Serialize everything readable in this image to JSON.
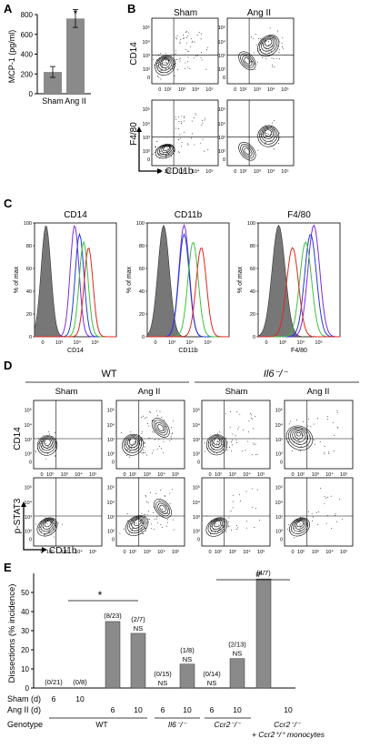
{
  "panel_labels": {
    "a": "A",
    "b": "B",
    "c": "C",
    "d": "D",
    "e": "E"
  },
  "colors": {
    "bar": "#8a8a8a",
    "isotype": "#777777",
    "purple": "#7a2be2",
    "blue": "#1f3cd6",
    "green": "#3cc23c",
    "red": "#e2261e"
  },
  "chart_data": [
    {
      "panel": "A",
      "type": "bar",
      "ylabel": "MCP-1 (pg/ml)",
      "categories": [
        "Sham",
        "Ang II"
      ],
      "values": [
        220,
        760
      ],
      "errors": [
        55,
        90
      ],
      "significance": [
        "",
        "*"
      ],
      "ylim": [
        0,
        800
      ],
      "yticks": [
        "0",
        "200",
        "400",
        "600",
        "800"
      ]
    },
    {
      "panel": "B",
      "type": "scatter",
      "columns": [
        "Sham",
        "Ang II"
      ],
      "row_ylabels": [
        "CD14",
        "F4/80"
      ],
      "xlabel": "CD11b",
      "tick_labels": [
        "0",
        "10²",
        "10³",
        "10⁴",
        "10⁵"
      ]
    },
    {
      "panel": "C",
      "type": "line",
      "titles": [
        "CD14",
        "CD11b",
        "F4/80"
      ],
      "xlabels": [
        "CD14",
        "CD11b",
        "F4/80"
      ],
      "ylabel": "% of max",
      "yticks": [
        "0",
        "20",
        "40",
        "60",
        "80",
        "100"
      ],
      "xticks": [
        "0",
        "10³",
        "10⁴",
        "10⁵"
      ]
    },
    {
      "panel": "D",
      "type": "scatter",
      "groups": [
        "WT",
        "Il6⁻/⁻"
      ],
      "columns": [
        "Sham",
        "Ang II",
        "Sham",
        "Ang II"
      ],
      "row_ylabels": [
        "CD14",
        "p-STAT3"
      ],
      "xlabel": "CD11b",
      "tick_labels": [
        "0",
        "10²",
        "10³",
        "10⁴",
        "10⁵"
      ]
    },
    {
      "panel": "E",
      "type": "bar",
      "ylabel": "Dissections (% incidence)",
      "ylim": [
        0,
        60
      ],
      "yticks": [
        "0",
        "10",
        "20",
        "30",
        "40",
        "50"
      ],
      "row_labels": [
        "Sham (d)",
        "Ang II (d)",
        "Genotype"
      ],
      "values": [
        0,
        0,
        34.8,
        28.6,
        0,
        12.5,
        0,
        15.4,
        57.1
      ],
      "counts": [
        "(0/21)",
        "(0/8)",
        "(8/23)",
        "(2/7)",
        "(0/15)",
        "(1/8)",
        "(0/14)",
        "(2/13)",
        "(4/7)"
      ],
      "ns": [
        "",
        "",
        "",
        "NS",
        "NS",
        "NS",
        "NS",
        "NS",
        ""
      ],
      "sham_days": [
        "6",
        "10",
        "",
        "",
        "",
        "",
        "",
        "",
        ""
      ],
      "angii_days": [
        "",
        "",
        "6",
        "10",
        "6",
        "10",
        "6",
        "10",
        "10"
      ],
      "genotypes": [
        "WT",
        "Il6⁻/⁻",
        "Ccr2⁻/⁻",
        "Ccr2⁻/⁻\n+ Ccr2⁺/⁺ monocytes"
      ],
      "significance_marks": [
        "*",
        "#"
      ]
    }
  ]
}
